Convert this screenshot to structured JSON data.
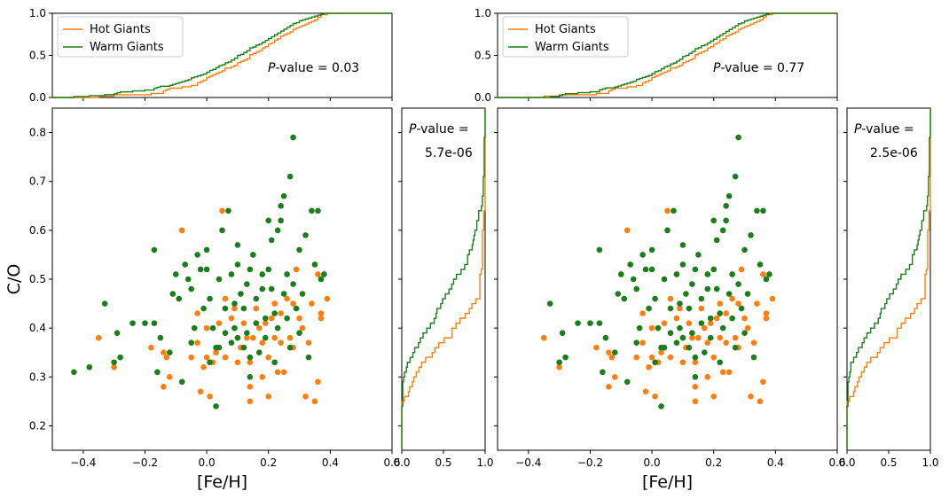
{
  "colors": {
    "hot": "#ff7f0e",
    "warm": "#1a7f1a",
    "frame": "#000000"
  },
  "chart_data": {
    "type": "scatter",
    "title": "",
    "xlabel": "[Fe/H]",
    "ylabel": "C/O",
    "xlim": [
      -0.5,
      0.6
    ],
    "ylim": [
      0.15,
      0.85
    ],
    "xticks": [
      -0.4,
      -0.2,
      0.0,
      0.2,
      0.4,
      0.6
    ],
    "xtick_labels": [
      "−0.4",
      "−0.2",
      "0.0",
      "0.2",
      "0.4",
      "0.6"
    ],
    "yticks": [
      0.2,
      0.3,
      0.4,
      0.5,
      0.6,
      0.7,
      0.8
    ],
    "ytick_labels": [
      "0.2",
      "0.3",
      "0.4",
      "0.5",
      "0.6",
      "0.7",
      "0.8"
    ],
    "cdf_ticks": [
      0.0,
      0.5,
      1.0
    ],
    "cdf_tick_labels": [
      "0.0",
      "0.5",
      "1.0"
    ],
    "legend": [
      "Hot Giants",
      "Warm Giants"
    ],
    "legend_location": "upper-left",
    "series": [
      {
        "name": "Hot Giants",
        "points": [
          [
            -0.35,
            0.38
          ],
          [
            -0.3,
            0.32
          ],
          [
            -0.18,
            0.36
          ],
          [
            -0.14,
            0.35
          ],
          [
            -0.13,
            0.34
          ],
          [
            -0.14,
            0.28
          ],
          [
            -0.12,
            0.3
          ],
          [
            -0.08,
            0.6
          ],
          [
            -0.05,
            0.34
          ],
          [
            -0.03,
            0.43
          ],
          [
            -0.03,
            0.37
          ],
          [
            -0.02,
            0.27
          ],
          [
            -0.01,
            0.32
          ],
          [
            0.0,
            0.4
          ],
          [
            0.0,
            0.34
          ],
          [
            0.01,
            0.26
          ],
          [
            0.02,
            0.33
          ],
          [
            0.03,
            0.35
          ],
          [
            0.04,
            0.41
          ],
          [
            0.06,
            0.46
          ],
          [
            0.05,
            0.64
          ],
          [
            0.06,
            0.34
          ],
          [
            0.08,
            0.42
          ],
          [
            0.09,
            0.44
          ],
          [
            0.1,
            0.38
          ],
          [
            0.1,
            0.33
          ],
          [
            0.11,
            0.36
          ],
          [
            0.12,
            0.41
          ],
          [
            0.13,
            0.38
          ],
          [
            0.14,
            0.33
          ],
          [
            0.14,
            0.28
          ],
          [
            0.14,
            0.25
          ],
          [
            0.15,
            0.38
          ],
          [
            0.16,
            0.44
          ],
          [
            0.17,
            0.4
          ],
          [
            0.18,
            0.37
          ],
          [
            0.18,
            0.3
          ],
          [
            0.19,
            0.41
          ],
          [
            0.2,
            0.34
          ],
          [
            0.2,
            0.26
          ],
          [
            0.21,
            0.42
          ],
          [
            0.22,
            0.38
          ],
          [
            0.22,
            0.45
          ],
          [
            0.23,
            0.31
          ],
          [
            0.24,
            0.37
          ],
          [
            0.24,
            0.43
          ],
          [
            0.25,
            0.31
          ],
          [
            0.26,
            0.46
          ],
          [
            0.27,
            0.38
          ],
          [
            0.28,
            0.36
          ],
          [
            0.28,
            0.45
          ],
          [
            0.29,
            0.52
          ],
          [
            0.3,
            0.42
          ],
          [
            0.31,
            0.4
          ],
          [
            0.32,
            0.26
          ],
          [
            0.33,
            0.37
          ],
          [
            0.34,
            0.45
          ],
          [
            0.35,
            0.25
          ],
          [
            0.36,
            0.29
          ],
          [
            0.36,
            0.51
          ],
          [
            0.37,
            0.42
          ],
          [
            0.37,
            0.43
          ],
          [
            0.39,
            0.46
          ]
        ]
      },
      {
        "name": "Warm Giants",
        "points": [
          [
            -0.43,
            0.31
          ],
          [
            -0.38,
            0.32
          ],
          [
            -0.33,
            0.45
          ],
          [
            -0.3,
            0.33
          ],
          [
            -0.29,
            0.39
          ],
          [
            -0.28,
            0.34
          ],
          [
            -0.24,
            0.41
          ],
          [
            -0.2,
            0.41
          ],
          [
            -0.17,
            0.56
          ],
          [
            -0.17,
            0.41
          ],
          [
            -0.16,
            0.31
          ],
          [
            -0.15,
            0.38
          ],
          [
            -0.12,
            0.35
          ],
          [
            -0.11,
            0.47
          ],
          [
            -0.1,
            0.51
          ],
          [
            -0.09,
            0.46
          ],
          [
            -0.08,
            0.29
          ],
          [
            -0.07,
            0.53
          ],
          [
            -0.06,
            0.5
          ],
          [
            -0.05,
            0.48
          ],
          [
            -0.05,
            0.37
          ],
          [
            -0.04,
            0.4
          ],
          [
            -0.03,
            0.55
          ],
          [
            -0.02,
            0.52
          ],
          [
            -0.01,
            0.44
          ],
          [
            0.0,
            0.56
          ],
          [
            0.0,
            0.52
          ],
          [
            0.01,
            0.46
          ],
          [
            0.01,
            0.33
          ],
          [
            0.02,
            0.4
          ],
          [
            0.03,
            0.36
          ],
          [
            0.03,
            0.24
          ],
          [
            0.04,
            0.36
          ],
          [
            0.04,
            0.5
          ],
          [
            0.05,
            0.6
          ],
          [
            0.06,
            0.44
          ],
          [
            0.06,
            0.39
          ],
          [
            0.07,
            0.64
          ],
          [
            0.08,
            0.51
          ],
          [
            0.08,
            0.37
          ],
          [
            0.09,
            0.45
          ],
          [
            0.09,
            0.4
          ],
          [
            0.1,
            0.53
          ],
          [
            0.1,
            0.57
          ],
          [
            0.1,
            0.38
          ],
          [
            0.11,
            0.47
          ],
          [
            0.12,
            0.36
          ],
          [
            0.12,
            0.44
          ],
          [
            0.13,
            0.49
          ],
          [
            0.13,
            0.39
          ],
          [
            0.14,
            0.52
          ],
          [
            0.14,
            0.3
          ],
          [
            0.14,
            0.34
          ],
          [
            0.15,
            0.55
          ],
          [
            0.16,
            0.41
          ],
          [
            0.16,
            0.46
          ],
          [
            0.17,
            0.35
          ],
          [
            0.18,
            0.51
          ],
          [
            0.18,
            0.48
          ],
          [
            0.19,
            0.38
          ],
          [
            0.19,
            0.42
          ],
          [
            0.2,
            0.62
          ],
          [
            0.2,
            0.52
          ],
          [
            0.21,
            0.58
          ],
          [
            0.21,
            0.48
          ],
          [
            0.22,
            0.43
          ],
          [
            0.22,
            0.33
          ],
          [
            0.23,
            0.4
          ],
          [
            0.23,
            0.6
          ],
          [
            0.24,
            0.65
          ],
          [
            0.24,
            0.62
          ],
          [
            0.25,
            0.67
          ],
          [
            0.25,
            0.47
          ],
          [
            0.26,
            0.51
          ],
          [
            0.26,
            0.42
          ],
          [
            0.27,
            0.71
          ],
          [
            0.27,
            0.36
          ],
          [
            0.28,
            0.79
          ],
          [
            0.28,
            0.49
          ],
          [
            0.29,
            0.44
          ],
          [
            0.3,
            0.56
          ],
          [
            0.3,
            0.39
          ],
          [
            0.31,
            0.47
          ],
          [
            0.32,
            0.59
          ],
          [
            0.33,
            0.34
          ],
          [
            0.34,
            0.64
          ],
          [
            0.35,
            0.53
          ],
          [
            0.36,
            0.64
          ],
          [
            0.37,
            0.5
          ],
          [
            0.38,
            0.51
          ]
        ]
      }
    ],
    "panels": [
      {
        "name": "left",
        "pvalue_fe": "= 0.03",
        "pvalue_co_line1": "=",
        "pvalue_co_line2": "5.7e-06",
        "hot_subset": "all",
        "warm_subset": "all"
      },
      {
        "name": "right",
        "pvalue_fe": "= 0.77",
        "pvalue_co_line1": "=",
        "pvalue_co_line2": "2.5e-06",
        "hot_subset": "fe_gt",
        "hot_min_fe": -0.4,
        "warm_subset": "fe_gt",
        "warm_min_fe": -0.35
      }
    ],
    "pvalue_prefix_italic": "P",
    "pvalue_suffix": "-value"
  }
}
